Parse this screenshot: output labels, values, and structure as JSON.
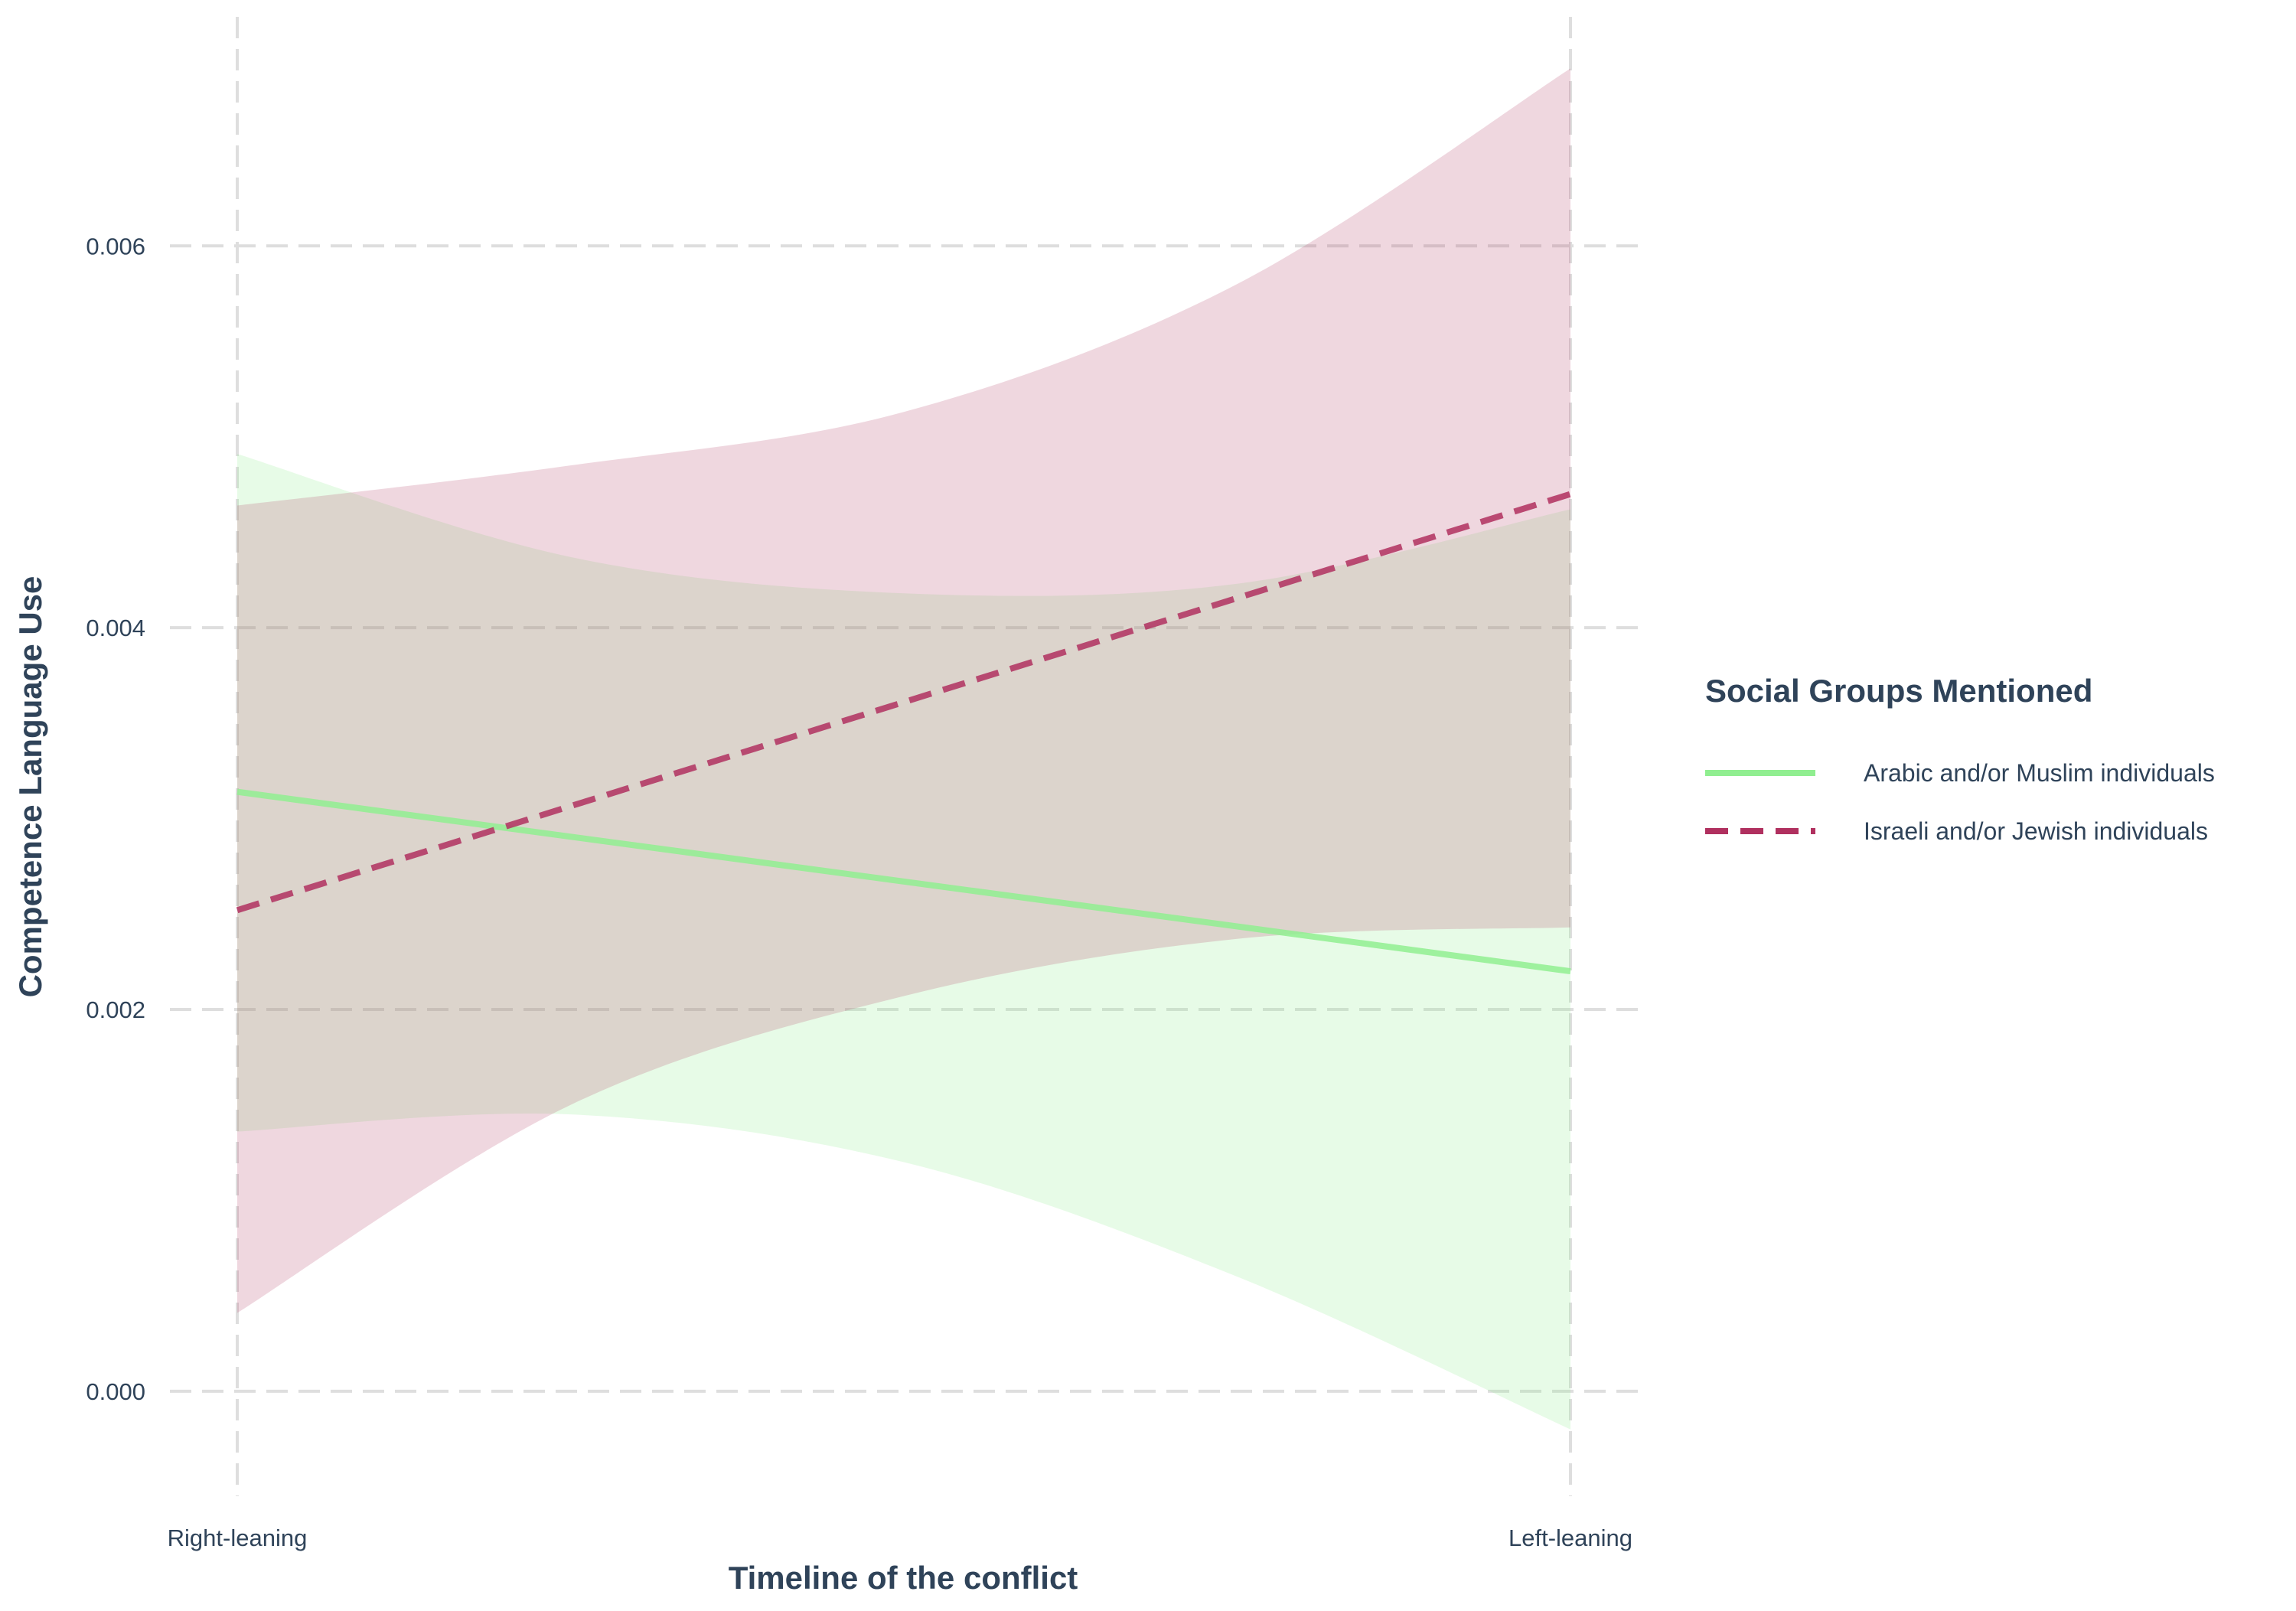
{
  "chart_data": {
    "type": "line",
    "title": "",
    "xlabel": "Timeline of the conflict",
    "ylabel": "Competence Language Use",
    "categories": [
      "Right-leaning",
      "Left-leaning"
    ],
    "ylim": [
      -0.00055,
      0.0072
    ],
    "yticks": [
      0.0,
      0.002,
      0.004,
      0.006
    ],
    "ytick_labels": [
      "0.000",
      "0.002",
      "0.004",
      "0.006"
    ],
    "grid": true,
    "legend": {
      "title": "Social Groups Mentioned",
      "position": "right"
    },
    "series": [
      {
        "name": "Arabic and/or Muslim individuals",
        "color": "#90ee90",
        "line_style": "solid",
        "ribbon_color": "#90ee90",
        "ribbon_opacity": 0.22,
        "values": [
          0.00314,
          0.0022
        ],
        "ribbon": [
          {
            "x": 0.0,
            "lower": 0.00136,
            "upper": 0.00491
          },
          {
            "x": 0.25,
            "lower": 0.00145,
            "upper": 0.00437
          },
          {
            "x": 0.5,
            "lower": 0.0012,
            "upper": 0.00418
          },
          {
            "x": 0.75,
            "lower": 0.0006,
            "upper": 0.00423
          },
          {
            "x": 1.0,
            "lower": -0.0002,
            "upper": 0.00462
          }
        ]
      },
      {
        "name": "Israeli and/or Jewish individuals",
        "color": "#b0305f",
        "line_style": "dashed",
        "ribbon_color": "#b8476f",
        "ribbon_opacity": 0.22,
        "values": [
          0.00252,
          0.0047
        ],
        "ribbon": [
          {
            "x": 0.0,
            "lower": 0.00041,
            "upper": 0.00464
          },
          {
            "x": 0.25,
            "lower": 0.0015,
            "upper": 0.00485
          },
          {
            "x": 0.5,
            "lower": 0.00207,
            "upper": 0.00513
          },
          {
            "x": 0.75,
            "lower": 0.00237,
            "upper": 0.0058
          },
          {
            "x": 1.0,
            "lower": 0.00243,
            "upper": 0.00693
          }
        ]
      }
    ]
  }
}
